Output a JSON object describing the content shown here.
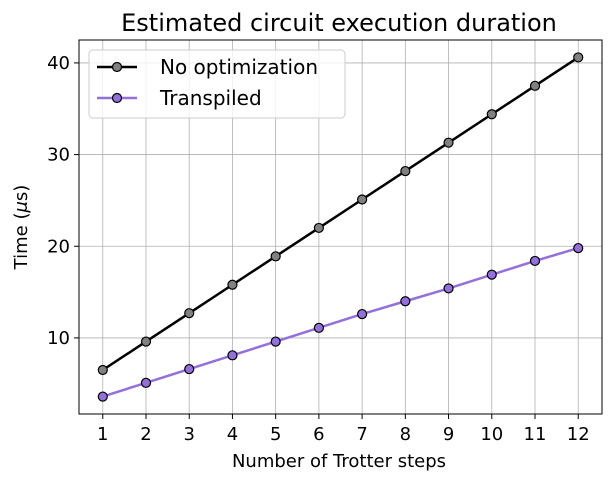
{
  "chart_data": {
    "type": "line",
    "title": "Estimated circuit execution duration",
    "xlabel": "Number of Trotter steps",
    "ylabel_prefix": "Time (",
    "ylabel_unit_symbol": "μ",
    "ylabel_suffix": "s)",
    "x": [
      1,
      2,
      3,
      4,
      5,
      6,
      7,
      8,
      9,
      10,
      11,
      12
    ],
    "xlim": [
      0.45,
      12.55
    ],
    "ylim": [
      1.7,
      42.5
    ],
    "yticks": [
      10,
      20,
      30,
      40
    ],
    "grid": true,
    "legend_position": "top-left",
    "series": [
      {
        "name": "No optimization",
        "color": "#000000",
        "marker_color": "#808080",
        "values": [
          6.5,
          9.6,
          12.7,
          15.8,
          18.9,
          22.0,
          25.1,
          28.2,
          31.3,
          34.4,
          37.5,
          40.6
        ]
      },
      {
        "name": "Transpiled",
        "color": "#9370DB",
        "marker_color": "#9370DB",
        "values": [
          3.6,
          5.1,
          6.6,
          8.1,
          9.6,
          11.1,
          12.6,
          14.0,
          15.4,
          16.9,
          18.4,
          19.8
        ]
      }
    ]
  }
}
